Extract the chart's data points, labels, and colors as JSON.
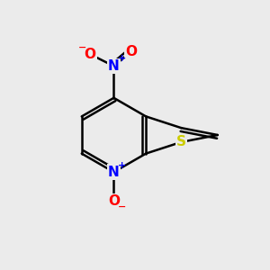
{
  "bg_color": "#ebebeb",
  "bond_color": "#000000",
  "bond_width": 1.8,
  "atom_colors": {
    "S": "#cccc00",
    "N_nitro": "#0000ff",
    "N_pyridine": "#0000ff",
    "O": "#ff0000",
    "C": "#000000"
  },
  "font_size_atom": 11,
  "font_size_charge": 8
}
